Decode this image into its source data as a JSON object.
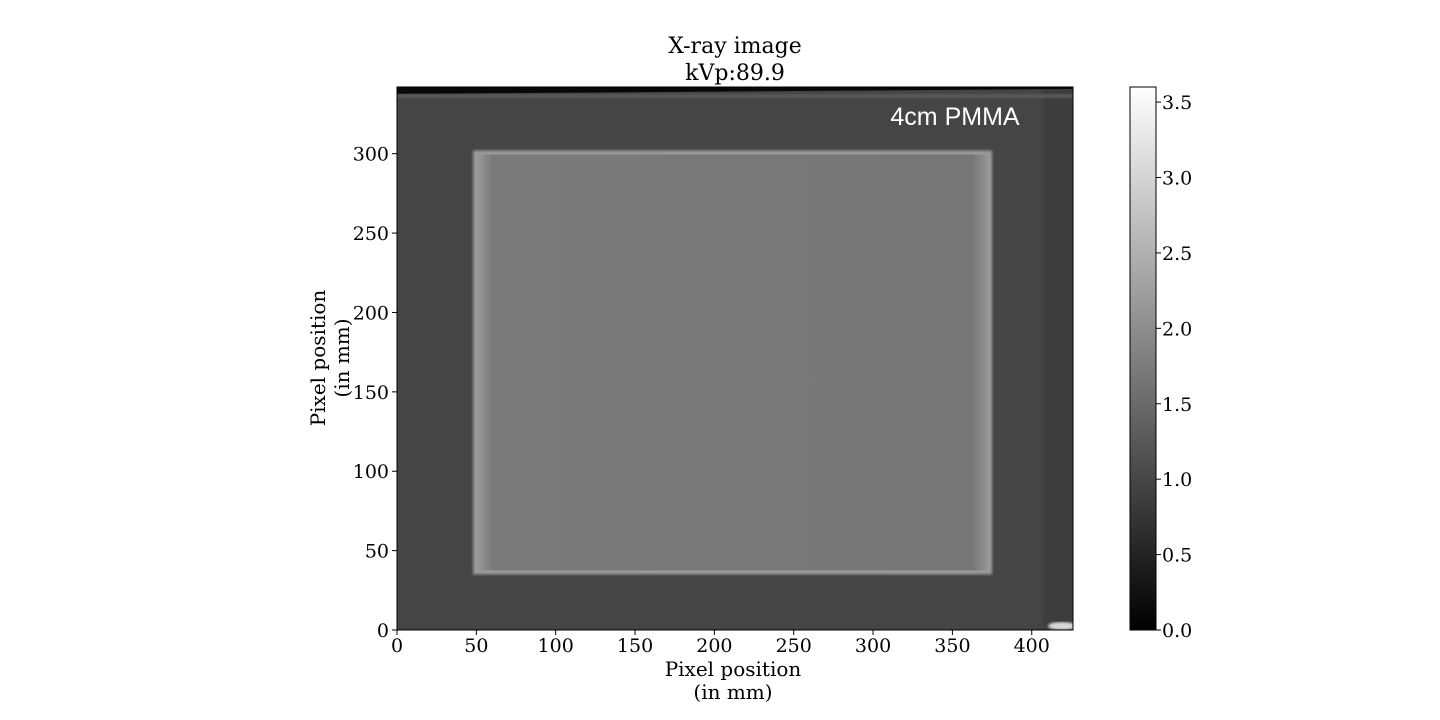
{
  "chart_data": {
    "type": "heatmap",
    "title": [
      "X-ray image",
      "kVp:89.9"
    ],
    "xlabel": [
      "Pixel position",
      "(in mm)"
    ],
    "ylabel": [
      "Pixel position",
      "(in mm)"
    ],
    "xlim": [
      0,
      426
    ],
    "ylim": [
      0,
      342
    ],
    "xticks": [
      0,
      50,
      100,
      150,
      200,
      250,
      300,
      350,
      400
    ],
    "yticks": [
      0,
      50,
      100,
      150,
      200,
      250,
      300
    ],
    "colormap": "gray",
    "image_annotation": "4cm PMMA",
    "regions": [
      {
        "name": "background",
        "x": [
          0,
          426
        ],
        "y": [
          0,
          342
        ],
        "value": 1.05
      },
      {
        "name": "pmma-slab",
        "x": [
          48,
          375
        ],
        "y": [
          35,
          302
        ],
        "value": 1.55
      }
    ],
    "colorbar": {
      "min": 0.0,
      "max": 3.6,
      "ticks": [
        0.0,
        0.5,
        1.0,
        1.5,
        2.0,
        2.5,
        3.0,
        3.5
      ],
      "tick_labels": [
        "0.0",
        "0.5",
        "1.0",
        "1.5",
        "2.0",
        "2.5",
        "3.0",
        "3.5"
      ]
    }
  }
}
